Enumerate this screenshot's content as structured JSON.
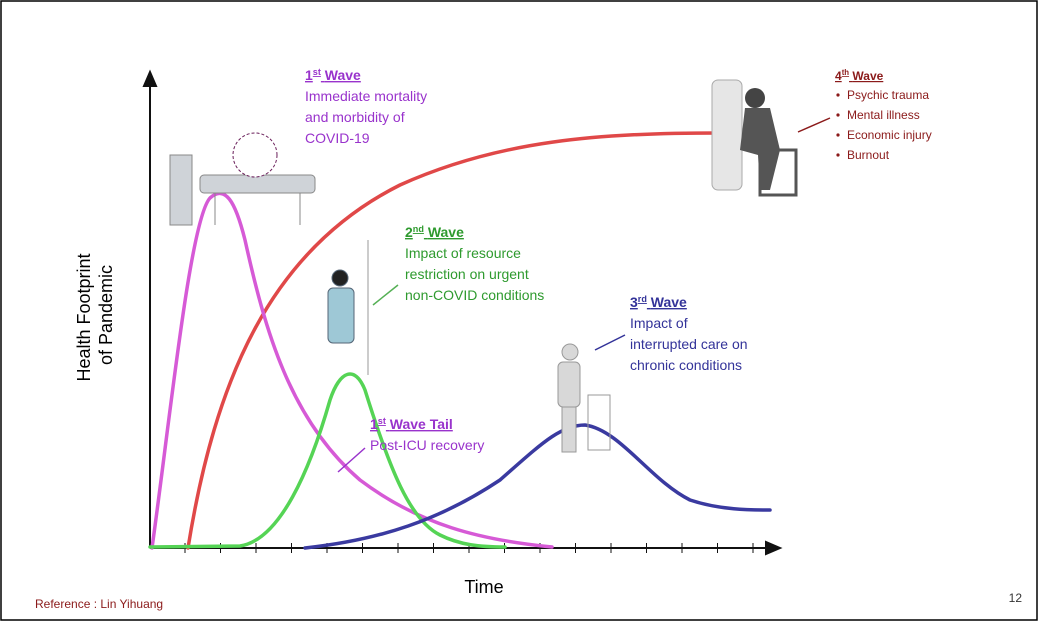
{
  "axes": {
    "y_label_lines": [
      "Health Footprint",
      "of Pandemic"
    ],
    "x_label": "Time"
  },
  "waves": [
    {
      "number": "1",
      "suffix": "st",
      "title": "Wave",
      "lines": [
        "Immediate mortality",
        "and morbidity of",
        "COVID-19"
      ]
    },
    {
      "number": "2",
      "suffix": "nd",
      "title": "Wave",
      "lines": [
        "Impact of resource",
        "restriction on urgent",
        "non-COVID conditions"
      ]
    },
    {
      "number": "3",
      "suffix": "rd",
      "title": "Wave",
      "lines": [
        "Impact of",
        "interrupted care on",
        "chronic conditions"
      ]
    },
    {
      "number": "1",
      "suffix": "st",
      "title": "Wave Tail",
      "lines": [
        "Post-ICU recovery"
      ]
    },
    {
      "number": "4",
      "suffix": "th",
      "title": "Wave",
      "bullets": [
        "Psychic trauma",
        "Mental illness",
        "Economic injury",
        "Burnout"
      ]
    }
  ],
  "footer": {
    "reference": "Reference : Lin Yihuang",
    "page_number": "12"
  }
}
